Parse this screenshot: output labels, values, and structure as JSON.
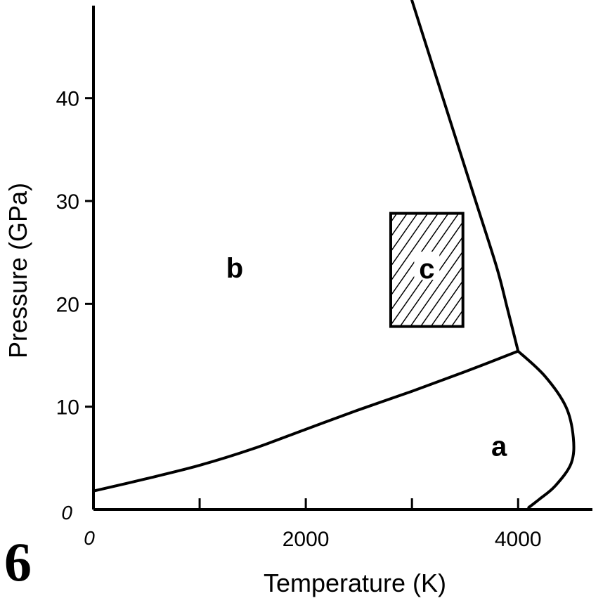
{
  "figure_number": "6",
  "chart_data": {
    "type": "line",
    "xlabel": "Temperature (K)",
    "ylabel": "Pressure (GPa)",
    "xlim": [
      0,
      4700
    ],
    "ylim": [
      0,
      49
    ],
    "x_ticks": [
      0,
      2000,
      4000
    ],
    "x_tick_labels": [
      "0",
      "2000",
      "4000"
    ],
    "x_minor_ticks": [
      1000,
      3000
    ],
    "y_ticks": [
      0,
      10,
      20,
      30,
      40
    ],
    "y_tick_labels": [
      "0",
      "10",
      "20",
      "30",
      "40"
    ],
    "grid": false,
    "series": [
      {
        "x": [
          0,
          500,
          1000,
          1500,
          2000,
          2500,
          3000,
          3500,
          4000
        ],
        "y": [
          1.8,
          3.0,
          4.3,
          5.9,
          7.8,
          9.7,
          11.5,
          13.4,
          15.4
        ]
      },
      {
        "x": [
          3000,
          3200,
          3400,
          3600,
          3800,
          3900,
          4000
        ],
        "y": [
          49.5,
          43.0,
          36.5,
          30.0,
          23.5,
          19.5,
          15.4
        ]
      },
      {
        "x": [
          4000,
          4250,
          4450,
          4520,
          4500,
          4350,
          4200,
          4100
        ],
        "y": [
          15.4,
          13.0,
          10.0,
          7.0,
          4.5,
          2.3,
          1.0,
          0.2
        ]
      }
    ],
    "shaded_region": {
      "label": "c",
      "x_range": [
        2800,
        3480
      ],
      "y_range": [
        17.8,
        28.8
      ]
    },
    "annotations": [
      {
        "text": "a",
        "x": 3820,
        "y": 6.2
      },
      {
        "text": "b",
        "x": 1330,
        "y": 23.5
      }
    ]
  }
}
